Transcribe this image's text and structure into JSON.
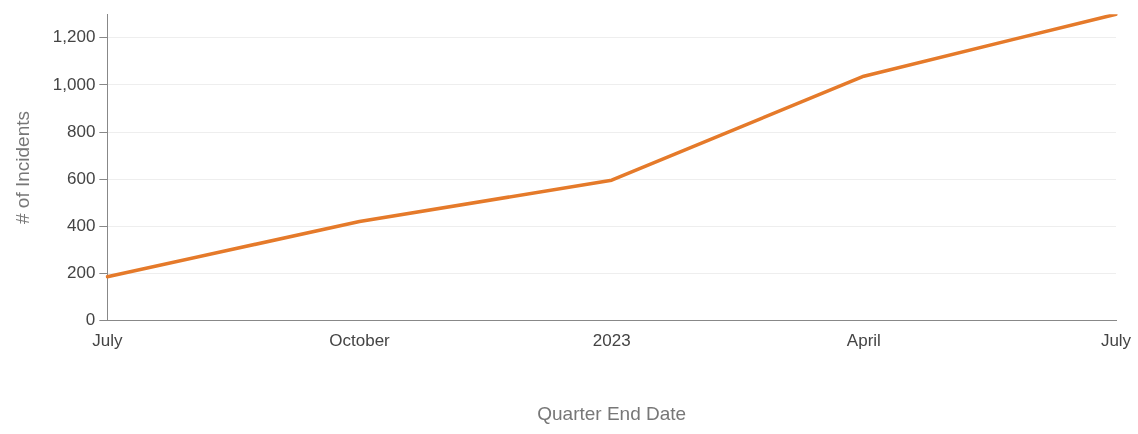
{
  "chart_data": {
    "type": "line",
    "xlabel": "Quarter End Date",
    "ylabel": "# of Incidents",
    "categories": [
      "July",
      "October",
      "2023",
      "April",
      "July"
    ],
    "series": [
      {
        "color": "#e57a2a",
        "values": [
          187,
          421,
          596,
          1037,
          1300
        ]
      }
    ],
    "ylim": [
      0,
      1300
    ],
    "yticks": [
      0,
      200,
      400,
      600,
      800,
      {
        "value": 1000,
        "label": "1,000"
      },
      {
        "value": 1200,
        "label": "1,200"
      }
    ],
    "grid": "y",
    "legend": false,
    "marker": "none",
    "line_style": "solid"
  }
}
